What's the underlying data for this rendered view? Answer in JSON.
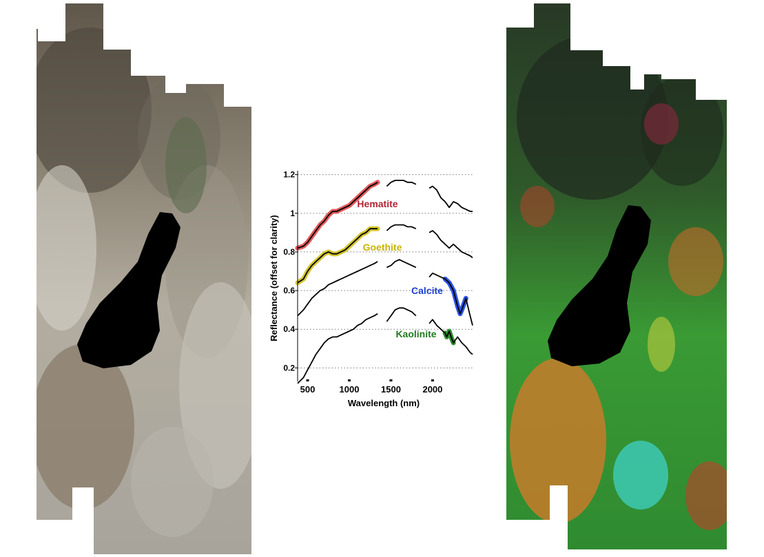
{
  "figure": {
    "left_image": {
      "kind": "true-color satellite scene"
    },
    "right_image": {
      "kind": "mineral map composite"
    }
  },
  "chart_data": {
    "type": "line",
    "xlabel": "Wavelength (nm)",
    "ylabel": "Reflectance (offset for clarity)",
    "xlim": [
      380,
      2480
    ],
    "ylim": [
      0.13,
      1.22
    ],
    "xticks": [
      500,
      1000,
      1500,
      2000
    ],
    "yticks": [
      0.2,
      0.4,
      0.6,
      0.8,
      1,
      1.2
    ],
    "ytick_labels": [
      "0.2",
      "0.4",
      "0.6",
      "0.8",
      "1",
      "1.2"
    ],
    "grid": "horizontal dotted",
    "bad_band_gaps_nm": [
      [
        1340,
        1450
      ],
      [
        1800,
        1960
      ]
    ],
    "series": [
      {
        "name": "Hematite",
        "label_color": "#b22234",
        "highlight_color": "#e05a5a",
        "highlight_nm": [
          380,
          1340
        ],
        "x": [
          380,
          450,
          500,
          550,
          600,
          650,
          700,
          750,
          800,
          850,
          900,
          950,
          1000,
          1050,
          1100,
          1150,
          1200,
          1250,
          1300,
          1340,
          1450,
          1500,
          1550,
          1600,
          1650,
          1700,
          1750,
          1800,
          1960,
          2000,
          2050,
          2100,
          2150,
          2200,
          2250,
          2300,
          2350,
          2400,
          2450,
          2480
        ],
        "y": [
          0.82,
          0.83,
          0.85,
          0.88,
          0.91,
          0.94,
          0.96,
          0.99,
          1.01,
          1.01,
          1.02,
          1.03,
          1.04,
          1.06,
          1.08,
          1.1,
          1.12,
          1.14,
          1.15,
          1.16,
          1.14,
          1.16,
          1.17,
          1.17,
          1.17,
          1.16,
          1.16,
          1.15,
          1.13,
          1.14,
          1.12,
          1.08,
          1.06,
          1.03,
          1.06,
          1.05,
          1.03,
          1.02,
          1.01,
          1.01
        ]
      },
      {
        "name": "Goethite",
        "label_color": "#c8b400",
        "highlight_color": "#d4c630",
        "highlight_nm": [
          380,
          1340
        ],
        "x": [
          380,
          450,
          500,
          550,
          600,
          650,
          700,
          750,
          800,
          850,
          900,
          950,
          1000,
          1050,
          1100,
          1150,
          1200,
          1250,
          1300,
          1340,
          1450,
          1500,
          1550,
          1600,
          1650,
          1700,
          1750,
          1800,
          1960,
          2000,
          2050,
          2100,
          2150,
          2200,
          2250,
          2300,
          2350,
          2400,
          2450,
          2480
        ],
        "y": [
          0.64,
          0.66,
          0.7,
          0.73,
          0.75,
          0.77,
          0.79,
          0.8,
          0.79,
          0.79,
          0.8,
          0.81,
          0.83,
          0.85,
          0.87,
          0.89,
          0.9,
          0.92,
          0.92,
          0.92,
          0.91,
          0.93,
          0.94,
          0.94,
          0.94,
          0.93,
          0.93,
          0.92,
          0.9,
          0.91,
          0.89,
          0.86,
          0.84,
          0.82,
          0.84,
          0.82,
          0.8,
          0.79,
          0.78,
          0.77
        ]
      },
      {
        "name": "Calcite",
        "label_color": "#1f3fd1",
        "highlight_color": "#2b55e8",
        "highlight_nm": [
          2150,
          2400
        ],
        "x": [
          380,
          450,
          500,
          550,
          600,
          650,
          700,
          750,
          800,
          850,
          900,
          950,
          1000,
          1050,
          1100,
          1150,
          1200,
          1250,
          1300,
          1340,
          1450,
          1500,
          1550,
          1600,
          1650,
          1700,
          1750,
          1800,
          1960,
          2000,
          2050,
          2100,
          2150,
          2200,
          2250,
          2300,
          2330,
          2350,
          2400,
          2450,
          2480
        ],
        "y": [
          0.47,
          0.5,
          0.53,
          0.56,
          0.58,
          0.6,
          0.61,
          0.63,
          0.64,
          0.65,
          0.66,
          0.67,
          0.68,
          0.69,
          0.7,
          0.71,
          0.72,
          0.73,
          0.74,
          0.75,
          0.72,
          0.73,
          0.75,
          0.76,
          0.75,
          0.74,
          0.73,
          0.72,
          0.67,
          0.69,
          0.68,
          0.67,
          0.66,
          0.64,
          0.6,
          0.52,
          0.48,
          0.5,
          0.56,
          0.47,
          0.42
        ]
      },
      {
        "name": "Kaolinite",
        "label_color": "#1e7a1e",
        "highlight_color": "#2e8f2e",
        "highlight_nm": [
          2140,
          2260
        ],
        "x": [
          380,
          450,
          500,
          550,
          600,
          650,
          700,
          750,
          800,
          850,
          900,
          950,
          1000,
          1050,
          1100,
          1150,
          1200,
          1250,
          1300,
          1340,
          1450,
          1500,
          1550,
          1600,
          1650,
          1700,
          1750,
          1800,
          1960,
          2000,
          2050,
          2100,
          2150,
          2170,
          2200,
          2230,
          2250,
          2300,
          2350,
          2400,
          2450,
          2480
        ],
        "y": [
          0.12,
          0.15,
          0.19,
          0.23,
          0.27,
          0.3,
          0.33,
          0.35,
          0.36,
          0.36,
          0.37,
          0.38,
          0.39,
          0.4,
          0.42,
          0.43,
          0.45,
          0.46,
          0.47,
          0.48,
          0.44,
          0.47,
          0.5,
          0.51,
          0.51,
          0.5,
          0.49,
          0.47,
          0.43,
          0.45,
          0.42,
          0.4,
          0.38,
          0.36,
          0.39,
          0.35,
          0.33,
          0.36,
          0.33,
          0.31,
          0.28,
          0.27
        ]
      }
    ]
  }
}
